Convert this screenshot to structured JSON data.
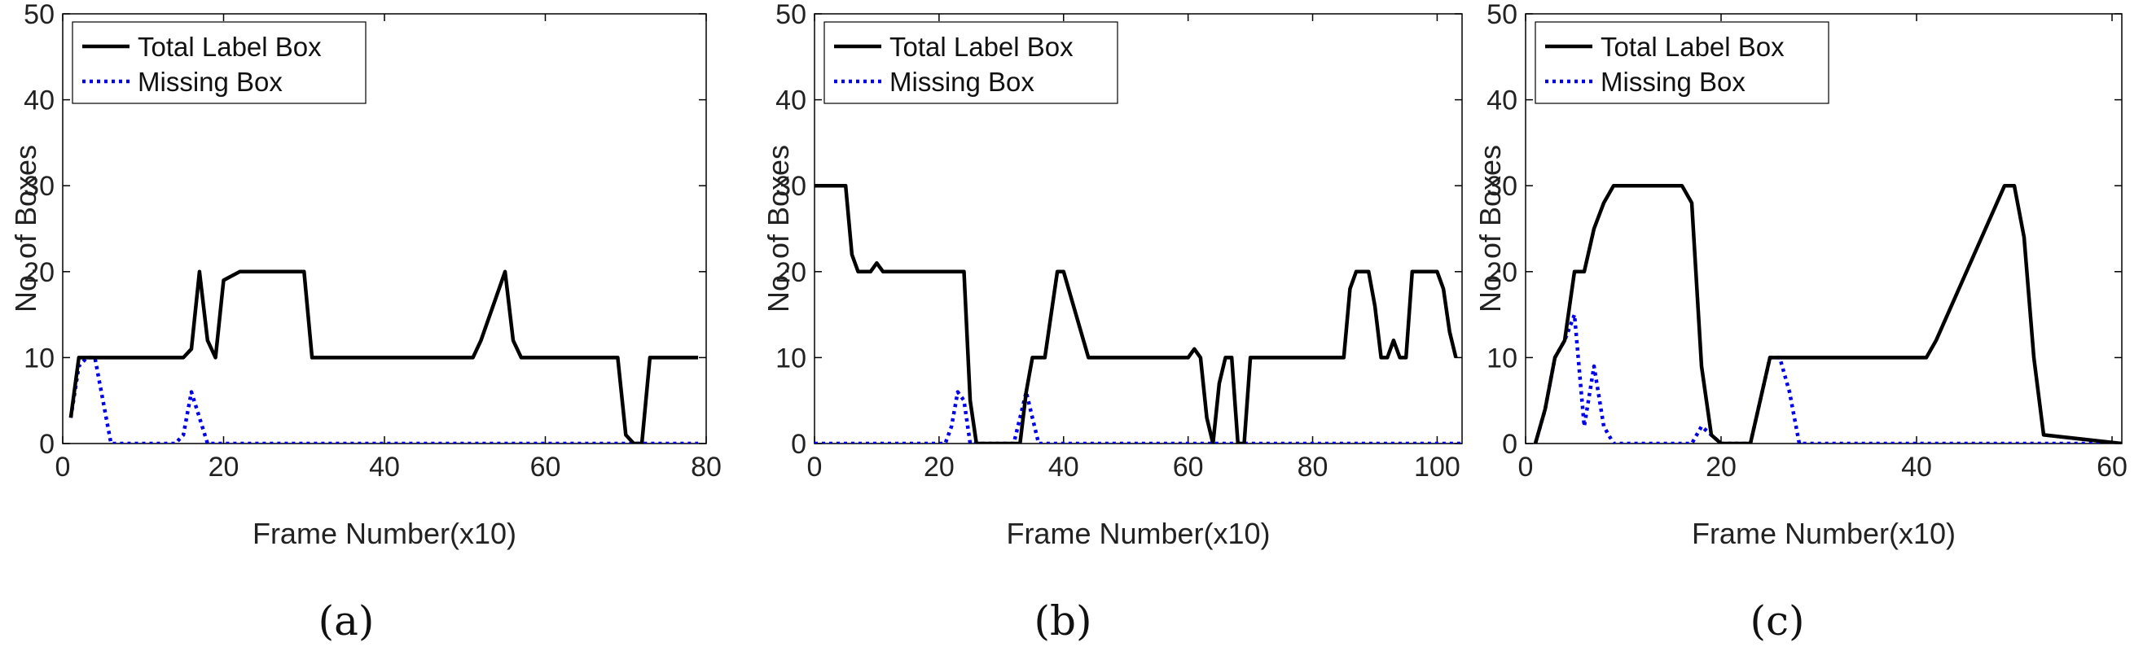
{
  "chart_data": [
    {
      "type": "line",
      "panel_label": "(a)",
      "xlabel": "Frame Number(x10)",
      "ylabel": "No. of Boxes",
      "xlim": [
        0,
        80
      ],
      "ylim": [
        0,
        50
      ],
      "xticks": [
        0,
        20,
        40,
        60,
        80
      ],
      "yticks": [
        0,
        10,
        20,
        30,
        40,
        50
      ],
      "grid": false,
      "legend_position": "top-left",
      "series": [
        {
          "name": "Total Label Box",
          "color": "#000000",
          "style": "solid",
          "x": [
            1,
            2,
            3,
            4,
            15,
            16,
            17,
            18,
            19,
            20,
            22,
            30,
            31,
            50,
            51,
            52,
            55,
            56,
            57,
            69,
            70,
            71,
            72,
            73,
            79
          ],
          "y": [
            3,
            10,
            10,
            10,
            10,
            11,
            20,
            12,
            10,
            19,
            20,
            20,
            10,
            10,
            10,
            12,
            20,
            12,
            10,
            10,
            1,
            0,
            0,
            10,
            10
          ]
        },
        {
          "name": "Missing Box",
          "color": "#0000ee",
          "style": "dotted",
          "x": [
            1,
            2,
            3,
            4,
            5,
            6,
            14,
            15,
            16,
            17,
            18,
            19,
            79
          ],
          "y": [
            3,
            9,
            10,
            10,
            5,
            0,
            0,
            1,
            6,
            3,
            0,
            0,
            0
          ]
        }
      ]
    },
    {
      "type": "line",
      "panel_label": "(b)",
      "xlabel": "Frame Number(x10)",
      "ylabel": "No. of Boxes",
      "xlim": [
        0,
        104
      ],
      "ylim": [
        0,
        50
      ],
      "xticks": [
        0,
        20,
        40,
        60,
        80,
        100
      ],
      "yticks": [
        0,
        10,
        20,
        30,
        40,
        50
      ],
      "grid": false,
      "legend_position": "top-left",
      "series": [
        {
          "name": "Total Label Box",
          "color": "#000000",
          "style": "solid",
          "x": [
            0,
            5,
            6,
            7,
            9,
            10,
            11,
            23,
            24,
            25,
            26,
            33,
            34,
            35,
            37,
            39,
            40,
            44,
            60,
            61,
            62,
            63,
            64,
            65,
            66,
            67,
            68,
            69,
            70,
            71,
            85,
            86,
            87,
            89,
            90,
            91,
            92,
            93,
            94,
            95,
            96,
            99,
            100,
            101,
            102,
            103
          ],
          "y": [
            30,
            30,
            22,
            20,
            20,
            21,
            20,
            20,
            20,
            5,
            0,
            0,
            6,
            10,
            10,
            20,
            20,
            10,
            10,
            11,
            10,
            3,
            0,
            7,
            10,
            10,
            0,
            0,
            10,
            10,
            10,
            18,
            20,
            20,
            16,
            10,
            10,
            12,
            10,
            10,
            20,
            20,
            20,
            18,
            13,
            10
          ]
        },
        {
          "name": "Missing Box",
          "color": "#0000ee",
          "style": "dotted",
          "x": [
            0,
            20,
            21,
            22,
            23,
            24,
            25,
            26,
            32,
            33,
            34,
            35,
            36,
            104
          ],
          "y": [
            0,
            0,
            0,
            2,
            6,
            5,
            0,
            0,
            0,
            3,
            6,
            3,
            0,
            0
          ]
        }
      ]
    },
    {
      "type": "line",
      "panel_label": "(c)",
      "xlabel": "Frame Number(x10)",
      "ylabel": "No. of Boxes",
      "xlim": [
        0,
        61
      ],
      "ylim": [
        0,
        50
      ],
      "xticks": [
        0,
        20,
        40,
        60
      ],
      "yticks": [
        0,
        10,
        20,
        30,
        40,
        50
      ],
      "grid": false,
      "legend_position": "top-left",
      "series": [
        {
          "name": "Total Label Box",
          "color": "#000000",
          "style": "solid",
          "x": [
            1,
            2,
            3,
            4,
            5,
            6,
            7,
            8,
            9,
            16,
            17,
            18,
            19,
            20,
            23,
            24,
            25,
            26,
            40,
            41,
            42,
            49,
            50,
            51,
            52,
            53,
            61
          ],
          "y": [
            0,
            4,
            10,
            12,
            20,
            20,
            25,
            28,
            30,
            30,
            28,
            9,
            1,
            0,
            0,
            5,
            10,
            10,
            10,
            10,
            12,
            30,
            30,
            24,
            10,
            1,
            0
          ]
        },
        {
          "name": "Missing Box",
          "color": "#0000ee",
          "style": "dotted",
          "x": [
            1,
            2,
            3,
            4,
            5,
            6,
            7,
            8,
            9,
            10,
            17,
            18,
            19,
            20,
            23,
            24,
            25,
            26,
            27,
            28,
            61
          ],
          "y": [
            0,
            4,
            10,
            12,
            15,
            2,
            9,
            2,
            0,
            0,
            0,
            2,
            1,
            0,
            0,
            5,
            10,
            10,
            6,
            0,
            0
          ]
        }
      ]
    }
  ]
}
